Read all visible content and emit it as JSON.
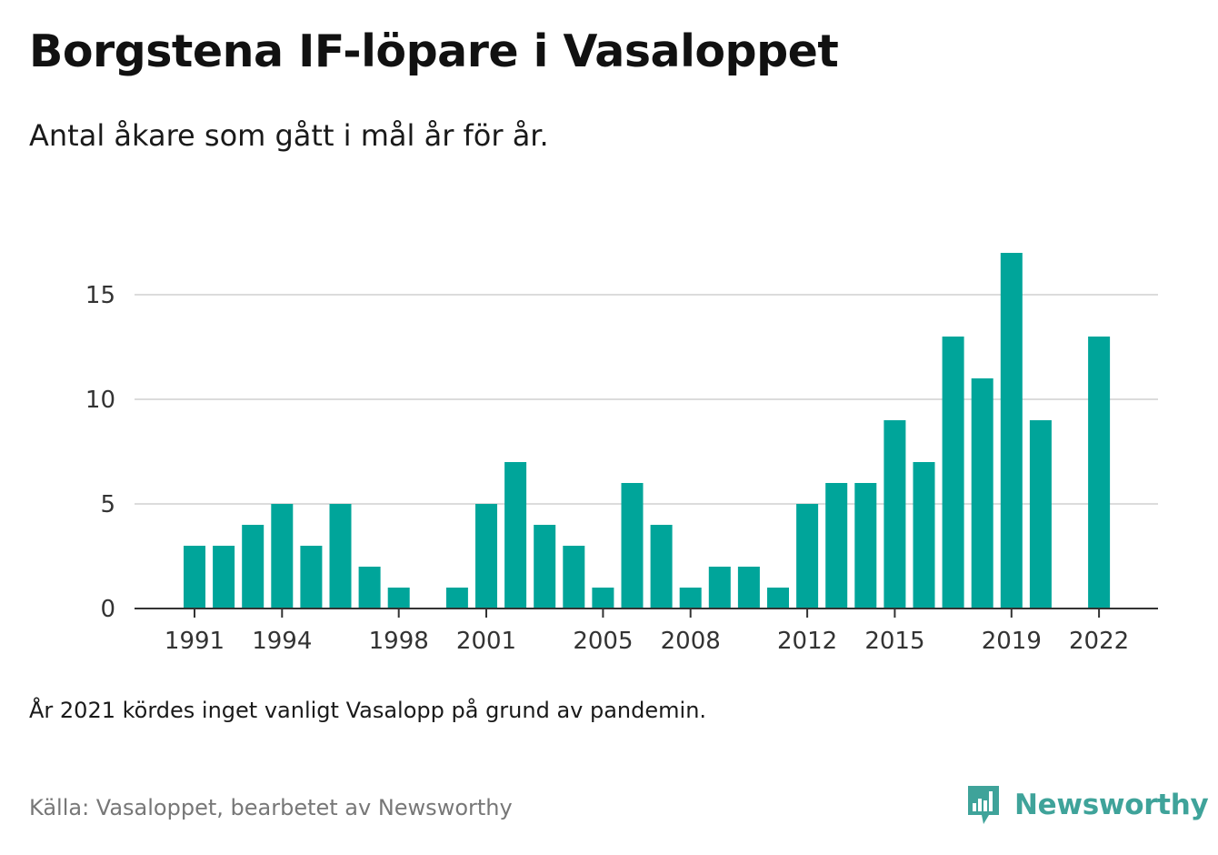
{
  "title": "Borgstena IF-löpare i Vasaloppet",
  "subtitle": "Antal åkare som gått i mål år för år.",
  "note": "År 2021 kördes inget vanligt Vasalopp på grund av pandemin.",
  "source": "Källa: Vasaloppet, bearbetet av Newsworthy",
  "brand": {
    "name": "Newsworthy",
    "icon": "newsworthy-logo-icon",
    "color": "#3fa39a"
  },
  "chart_data": {
    "type": "bar",
    "bar_color": "#00a59a",
    "x": [
      1991,
      1992,
      1993,
      1994,
      1995,
      1996,
      1997,
      1998,
      1999,
      2000,
      2001,
      2002,
      2003,
      2004,
      2005,
      2006,
      2007,
      2008,
      2009,
      2010,
      2011,
      2012,
      2013,
      2014,
      2015,
      2016,
      2017,
      2018,
      2019,
      2020,
      2021,
      2022
    ],
    "values": [
      3,
      3,
      4,
      5,
      3,
      5,
      2,
      1,
      0,
      1,
      5,
      7,
      4,
      3,
      1,
      6,
      4,
      1,
      2,
      2,
      1,
      5,
      6,
      6,
      9,
      7,
      13,
      11,
      17,
      9,
      null,
      13
    ],
    "x_ticks": [
      "1991",
      "1994",
      "1998",
      "2001",
      "2005",
      "2008",
      "2012",
      "2015",
      "2019",
      "2022"
    ],
    "y_ticks": [
      "0",
      "5",
      "10",
      "15"
    ],
    "ylim": [
      0,
      17
    ],
    "grid": true,
    "xlabel": "",
    "ylabel": ""
  }
}
